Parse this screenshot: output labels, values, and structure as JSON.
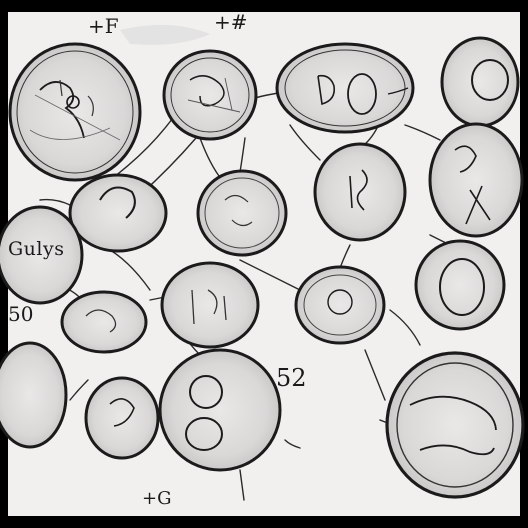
{
  "sketch": {
    "paper_color": "#f1f0ef",
    "ink_color": "#1b1b1b",
    "frame_color": "#000000"
  },
  "labels": {
    "top_left": "+F",
    "top_mid": "+#",
    "left_word": "Gulys",
    "left_num": "50",
    "mid_num": "52",
    "bottom": "+G"
  }
}
